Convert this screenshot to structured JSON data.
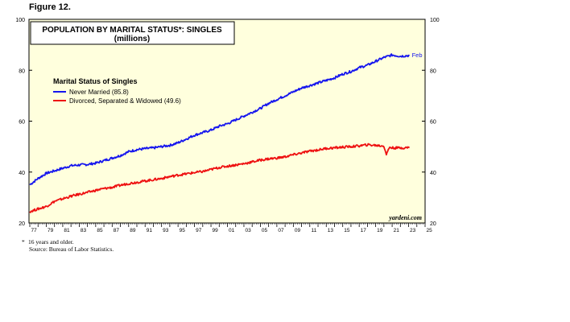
{
  "figure_label": "Figure 12.",
  "footnote": {
    "marker": "*",
    "lines": [
      "16 years and older.",
      "Source: Bureau of Labor Statistics."
    ]
  },
  "watermark": "yardeni.com",
  "chart_data": {
    "type": "line",
    "title": "POPULATION BY MARITAL STATUS*: SINGLES",
    "subtitle": "(millions)",
    "legend_title": "Marital Status of Singles",
    "legend_position": "top-left",
    "ylim": [
      20,
      100
    ],
    "yticks": [
      20,
      40,
      60,
      80,
      100
    ],
    "xlim": [
      1976.9,
      2025
    ],
    "xtick_labels": [
      "77",
      "79",
      "81",
      "83",
      "85",
      "87",
      "89",
      "91",
      "93",
      "95",
      "97",
      "99",
      "01",
      "03",
      "05",
      "07",
      "09",
      "11",
      "13",
      "15",
      "17",
      "19",
      "21",
      "23",
      "25"
    ],
    "end_annotation": "Feb",
    "grid": false,
    "plot_background": "#ffffdd",
    "series": [
      {
        "name": "Never Married",
        "legend_label": "Never Married (85.8)",
        "color": "#1515ee",
        "x": [
          1977,
          1978,
          1979,
          1980,
          1981,
          1982,
          1983,
          1984,
          1985,
          1986,
          1987,
          1988,
          1989,
          1990,
          1991,
          1992,
          1993,
          1994,
          1995,
          1996,
          1997,
          1998,
          1999,
          2000,
          2001,
          2002,
          2003,
          2004,
          2005,
          2006,
          2007,
          2008,
          2009,
          2010,
          2011,
          2012,
          2013,
          2014,
          2015,
          2016,
          2017,
          2018,
          2019,
          2020,
          2021,
          2022,
          2023.1
        ],
        "y": [
          35,
          37.5,
          39.5,
          40.5,
          41.5,
          42.5,
          42.8,
          43,
          43.5,
          44.5,
          45.5,
          46.5,
          48,
          48.8,
          49.2,
          49.5,
          50,
          50.5,
          51.5,
          53,
          54.5,
          55.5,
          56.5,
          58,
          59,
          60.5,
          62,
          63.5,
          65,
          67,
          68.5,
          70,
          71.5,
          73,
          74,
          75,
          76,
          77,
          78.5,
          79.5,
          81,
          82,
          83.5,
          85,
          86,
          85.5,
          85.8
        ]
      },
      {
        "name": "Divorced, Separated & Widowed",
        "legend_label": "Divorced, Separated & Widowed (49.6)",
        "color": "#ee1111",
        "x": [
          1977,
          1978,
          1979,
          1980,
          1981,
          1982,
          1983,
          1984,
          1985,
          1986,
          1987,
          1988,
          1989,
          1990,
          1991,
          1992,
          1993,
          1994,
          1995,
          1996,
          1997,
          1998,
          1999,
          2000,
          2001,
          2002,
          2003,
          2004,
          2005,
          2006,
          2007,
          2008,
          2009,
          2010,
          2011,
          2012,
          2013,
          2014,
          2015,
          2016,
          2017,
          2018,
          2019,
          2020,
          2020.3,
          2020.7,
          2021,
          2022,
          2023.1
        ],
        "y": [
          24.5,
          25.5,
          26.5,
          28.5,
          29.5,
          30.5,
          31.3,
          32,
          32.8,
          33.5,
          34,
          34.8,
          35.5,
          36,
          36.5,
          37,
          37.5,
          38.2,
          38.8,
          39.3,
          39.8,
          40.2,
          41,
          41.8,
          42.3,
          42.8,
          43.3,
          44,
          44.7,
          45.2,
          45.5,
          46,
          46.8,
          47.5,
          48.2,
          48.7,
          49.3,
          49.5,
          49.8,
          50,
          50.3,
          50.7,
          50.5,
          50.2,
          47,
          49.8,
          49.5,
          49.5,
          49.6
        ]
      }
    ]
  }
}
